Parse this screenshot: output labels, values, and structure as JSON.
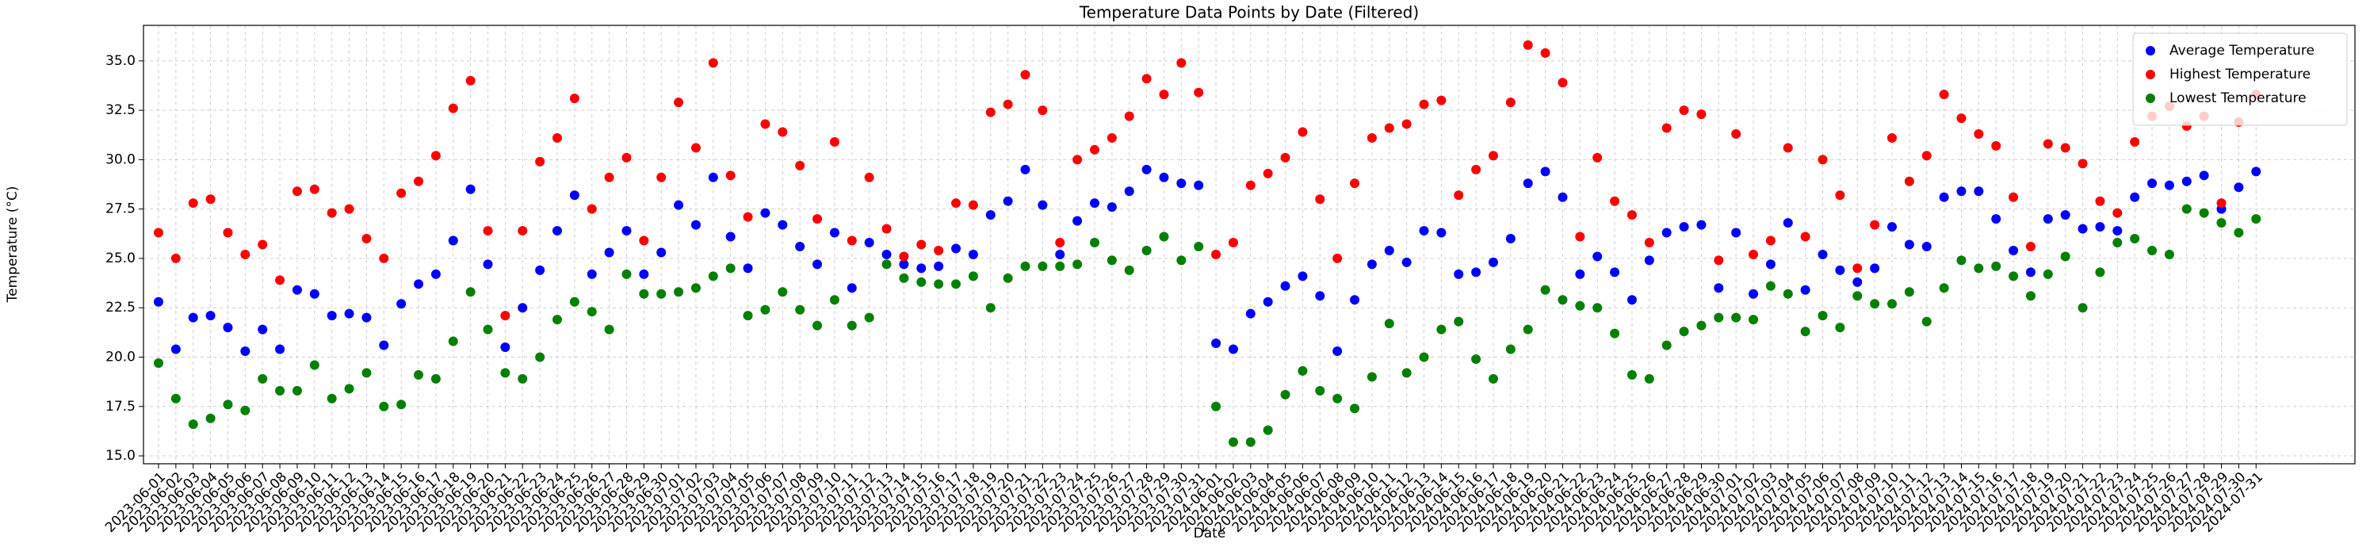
{
  "chart_data": {
    "type": "scatter",
    "title": "Temperature Data Points by Date (Filtered)",
    "x_label": "Date",
    "y_label": "Temperature (°C)",
    "categories": [
      "2023-06-01",
      "2023-06-02",
      "2023-06-03",
      "2023-06-04",
      "2023-06-05",
      "2023-06-06",
      "2023-06-07",
      "2023-06-08",
      "2023-06-09",
      "2023-06-10",
      "2023-06-11",
      "2023-06-12",
      "2023-06-13",
      "2023-06-14",
      "2023-06-15",
      "2023-06-16",
      "2023-06-17",
      "2023-06-18",
      "2023-06-19",
      "2023-06-20",
      "2023-06-21",
      "2023-06-22",
      "2023-06-23",
      "2023-06-24",
      "2023-06-25",
      "2023-06-26",
      "2023-06-27",
      "2023-06-28",
      "2023-06-29",
      "2023-06-30",
      "2023-07-01",
      "2023-07-02",
      "2023-07-03",
      "2023-07-04",
      "2023-07-05",
      "2023-07-06",
      "2023-07-07",
      "2023-07-08",
      "2023-07-09",
      "2023-07-10",
      "2023-07-11",
      "2023-07-12",
      "2023-07-13",
      "2023-07-14",
      "2023-07-15",
      "2023-07-16",
      "2023-07-17",
      "2023-07-18",
      "2023-07-19",
      "2023-07-20",
      "2023-07-21",
      "2023-07-22",
      "2023-07-23",
      "2023-07-24",
      "2023-07-25",
      "2023-07-26",
      "2023-07-27",
      "2023-07-28",
      "2023-07-29",
      "2023-07-30",
      "2023-07-31",
      "2024-06-01",
      "2024-06-02",
      "2024-06-03",
      "2024-06-04",
      "2024-06-05",
      "2024-06-06",
      "2024-06-07",
      "2024-06-08",
      "2024-06-09",
      "2024-06-10",
      "2024-06-11",
      "2024-06-12",
      "2024-06-13",
      "2024-06-14",
      "2024-06-15",
      "2024-06-16",
      "2024-06-17",
      "2024-06-18",
      "2024-06-19",
      "2024-06-20",
      "2024-06-21",
      "2024-06-22",
      "2024-06-23",
      "2024-06-24",
      "2024-06-25",
      "2024-06-26",
      "2024-06-27",
      "2024-06-28",
      "2024-06-29",
      "2024-06-30",
      "2024-07-01",
      "2024-07-02",
      "2024-07-03",
      "2024-07-04",
      "2024-07-05",
      "2024-07-06",
      "2024-07-07",
      "2024-07-08",
      "2024-07-09",
      "2024-07-10",
      "2024-07-11",
      "2024-07-12",
      "2024-07-13",
      "2024-07-14",
      "2024-07-15",
      "2024-07-16",
      "2024-07-17",
      "2024-07-18",
      "2024-07-19",
      "2024-07-20",
      "2024-07-21",
      "2024-07-22",
      "2024-07-23",
      "2024-07-24",
      "2024-07-25",
      "2024-07-26",
      "2024-07-27",
      "2024-07-28",
      "2024-07-29",
      "2024-07-30",
      "2024-07-31"
    ],
    "series": [
      {
        "name": "Average Temperature",
        "color": "#0000ff",
        "values": [
          22.8,
          20.4,
          22.0,
          22.1,
          21.5,
          20.3,
          21.4,
          20.4,
          23.4,
          23.2,
          22.1,
          22.2,
          22.0,
          20.6,
          22.7,
          23.7,
          24.2,
          25.9,
          28.5,
          24.7,
          20.5,
          22.5,
          24.4,
          26.4,
          28.2,
          24.2,
          25.3,
          26.4,
          24.2,
          25.3,
          27.7,
          26.7,
          29.1,
          26.1,
          24.5,
          27.3,
          26.7,
          25.6,
          24.7,
          26.3,
          23.5,
          25.8,
          25.2,
          24.7,
          24.5,
          24.6,
          25.5,
          25.2,
          27.2,
          27.9,
          29.5,
          27.7,
          25.2,
          26.9,
          27.8,
          27.6,
          28.4,
          29.5,
          29.1,
          28.8,
          28.7,
          20.7,
          20.4,
          22.2,
          22.8,
          23.6,
          24.1,
          23.1,
          20.3,
          22.9,
          24.7,
          25.4,
          24.8,
          26.4,
          26.3,
          24.2,
          24.3,
          24.8,
          26.0,
          28.8,
          29.4,
          28.1,
          24.2,
          25.1,
          24.3,
          22.9,
          24.9,
          26.3,
          26.6,
          26.7,
          23.5,
          26.3,
          23.2,
          24.7,
          26.8,
          23.4,
          25.2,
          24.4,
          23.8,
          24.5,
          26.6,
          25.7,
          25.6,
          28.1,
          28.4,
          28.4,
          27.0,
          25.4,
          24.3,
          27.0,
          27.2,
          26.5,
          26.6,
          26.4,
          28.1,
          28.8,
          28.7,
          28.9,
          29.2,
          27.5,
          28.6,
          29.4
        ]
      },
      {
        "name": "Highest Temperature",
        "color": "#ff0000",
        "values": [
          26.3,
          25.0,
          27.8,
          28.0,
          26.3,
          25.2,
          25.7,
          23.9,
          28.4,
          28.5,
          27.3,
          27.5,
          26.0,
          25.0,
          28.3,
          28.9,
          30.2,
          32.6,
          34.0,
          26.4,
          22.1,
          26.4,
          29.9,
          31.1,
          33.1,
          27.5,
          29.1,
          30.1,
          25.9,
          29.1,
          32.9,
          30.6,
          34.9,
          29.2,
          27.1,
          31.8,
          31.4,
          29.7,
          27.0,
          30.9,
          25.9,
          29.1,
          26.5,
          25.1,
          25.7,
          25.4,
          27.8,
          27.7,
          32.4,
          32.8,
          34.3,
          32.5,
          25.8,
          30.0,
          30.5,
          31.1,
          32.2,
          34.1,
          33.3,
          34.9,
          33.4,
          25.2,
          25.8,
          28.7,
          29.3,
          30.1,
          31.4,
          28.0,
          25.0,
          28.8,
          31.1,
          31.6,
          31.8,
          32.8,
          33.0,
          28.2,
          29.5,
          30.2,
          32.9,
          35.8,
          35.4,
          33.9,
          26.1,
          30.1,
          27.9,
          27.2,
          25.8,
          31.6,
          32.5,
          32.3,
          24.9,
          31.3,
          25.2,
          25.9,
          30.6,
          26.1,
          30.0,
          28.2,
          24.5,
          26.7,
          31.1,
          28.9,
          30.2,
          33.3,
          32.1,
          31.3,
          30.7,
          28.1,
          25.6,
          30.8,
          30.6,
          29.8,
          27.9,
          27.3,
          30.9,
          32.2,
          32.7,
          31.7,
          32.2,
          27.8,
          31.9,
          33.3
        ]
      },
      {
        "name": "Lowest Temperature",
        "color": "#008000",
        "values": [
          19.7,
          17.9,
          16.6,
          16.9,
          17.6,
          17.3,
          18.9,
          18.3,
          18.3,
          19.6,
          17.9,
          18.4,
          19.2,
          17.5,
          17.6,
          19.1,
          18.9,
          20.8,
          23.3,
          21.4,
          19.2,
          18.9,
          20.0,
          21.9,
          22.8,
          22.3,
          21.4,
          24.2,
          23.2,
          23.2,
          23.3,
          23.5,
          24.1,
          24.5,
          22.1,
          22.4,
          23.3,
          22.4,
          21.6,
          22.9,
          21.6,
          22.0,
          24.7,
          24.0,
          23.8,
          23.7,
          23.7,
          24.1,
          22.5,
          24.0,
          24.6,
          24.6,
          24.6,
          24.7,
          25.8,
          24.9,
          24.4,
          25.4,
          26.1,
          24.9,
          25.6,
          17.5,
          15.7,
          15.7,
          16.3,
          18.1,
          19.3,
          18.3,
          17.9,
          17.4,
          19.0,
          21.7,
          19.2,
          20.0,
          21.4,
          21.8,
          19.9,
          18.9,
          20.4,
          21.4,
          23.4,
          22.9,
          22.6,
          22.5,
          21.2,
          19.1,
          18.9,
          20.6,
          21.3,
          21.6,
          22.0,
          22.0,
          21.9,
          23.6,
          23.2,
          21.3,
          22.1,
          21.5,
          23.1,
          22.7,
          22.7,
          23.3,
          21.8,
          23.5,
          24.9,
          24.5,
          24.6,
          24.1,
          23.1,
          24.2,
          25.1,
          22.5,
          24.3,
          25.8,
          26.0,
          25.4,
          25.2,
          27.5,
          27.3,
          26.8,
          26.3,
          27.0
        ]
      }
    ],
    "ylim": [
      14.6,
      36.8
    ],
    "yticks": [
      {
        "value": 15,
        "label": "15.0"
      },
      {
        "value": 17.5,
        "label": "17.5"
      },
      {
        "value": 20,
        "label": "20.0"
      },
      {
        "value": 22.5,
        "label": "22.5"
      },
      {
        "value": 25,
        "label": "25.0"
      },
      {
        "value": 27.5,
        "label": "27.5"
      },
      {
        "value": 30,
        "label": "30.0"
      },
      {
        "value": 32.5,
        "label": "32.5"
      },
      {
        "value": 35,
        "label": "35.0"
      }
    ],
    "grid": true,
    "legend": "upper right"
  }
}
